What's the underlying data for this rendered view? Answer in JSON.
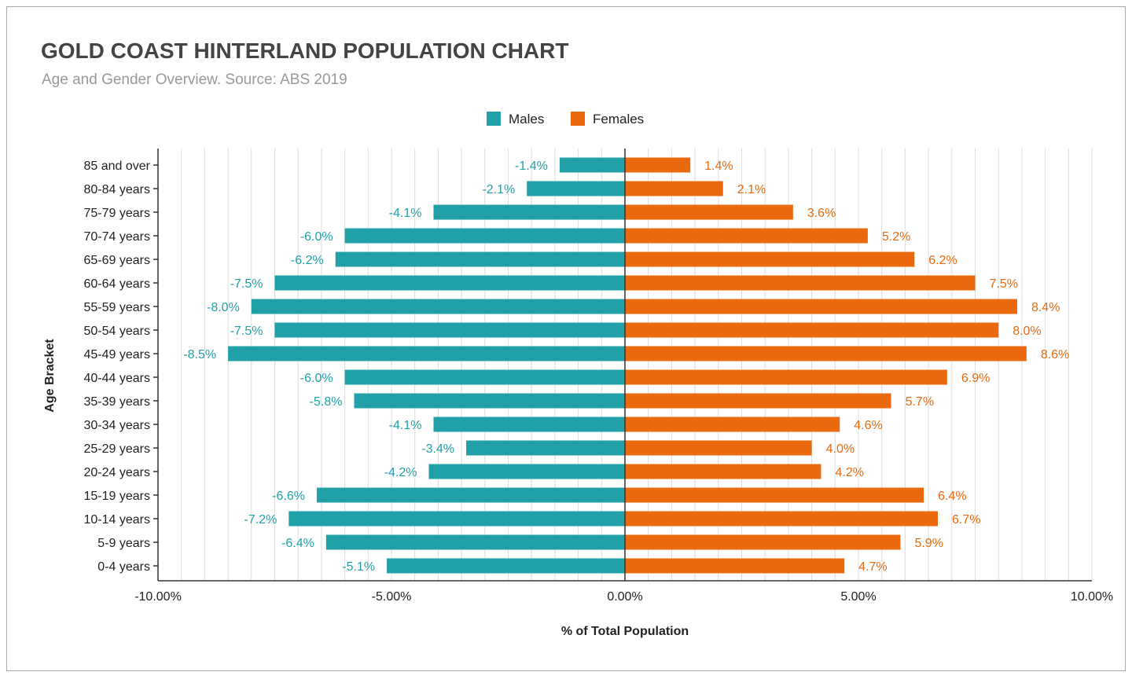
{
  "header": {
    "title": "GOLD COAST HINTERLAND POPULATION CHART",
    "subtitle": "Age and Gender Overview. Source: ABS 2019"
  },
  "colors": {
    "males": "#22a0a8",
    "females": "#e8690e",
    "grid": "#dddddd",
    "axis": "#333333",
    "text": "#222222"
  },
  "chart_data": {
    "type": "bar",
    "orientation": "horizontal",
    "subtype": "population-pyramid",
    "title": "GOLD COAST HINTERLAND POPULATION CHART",
    "subtitle": "Age and Gender Overview. Source: ABS 2019",
    "xlabel": "% of Total Population",
    "ylabel": "Age Bracket",
    "xlim": [
      -10,
      10
    ],
    "x_ticks": [
      "-10.00%",
      "-5.00%",
      "0.00%",
      "5.00%",
      "10.00%"
    ],
    "x_tick_values": [
      -10,
      -5,
      0,
      5,
      10
    ],
    "grid": true,
    "legend_position": "top-center",
    "categories": [
      "85 and over",
      "80-84 years",
      "75-79 years",
      "70-74 years",
      "65-69 years",
      "60-64 years",
      "55-59 years",
      "50-54 years",
      "45-49 years",
      "40-44 years",
      "35-39 years",
      "30-34 years",
      "25-29 years",
      "20-24 years",
      "15-19 years",
      "10-14 years",
      "5-9 years",
      "0-4 years"
    ],
    "series": [
      {
        "name": "Males",
        "color": "#22a0a8",
        "values": [
          -1.4,
          -2.1,
          -4.1,
          -6.0,
          -6.2,
          -7.5,
          -8.0,
          -7.5,
          -8.5,
          -6.0,
          -5.8,
          -4.1,
          -3.4,
          -4.2,
          -6.6,
          -7.2,
          -6.4,
          -5.1
        ],
        "labels": [
          "-1.4%",
          "-2.1%",
          "-4.1%",
          "-6.0%",
          "-6.2%",
          "-7.5%",
          "-8.0%",
          "-7.5%",
          "-8.5%",
          "-6.0%",
          "-5.8%",
          "-4.1%",
          "-3.4%",
          "-4.2%",
          "-6.6%",
          "-7.2%",
          "-6.4%",
          "-5.1%"
        ]
      },
      {
        "name": "Females",
        "color": "#e8690e",
        "values": [
          1.4,
          2.1,
          3.6,
          5.2,
          6.2,
          7.5,
          8.4,
          8.0,
          8.6,
          6.9,
          5.7,
          4.6,
          4.0,
          4.2,
          6.4,
          6.7,
          5.9,
          4.7
        ],
        "labels": [
          "1.4%",
          "2.1%",
          "3.6%",
          "5.2%",
          "6.2%",
          "7.5%",
          "8.4%",
          "8.0%",
          "8.6%",
          "6.9%",
          "5.7%",
          "4.6%",
          "4.0%",
          "4.2%",
          "6.4%",
          "6.7%",
          "5.9%",
          "4.7%"
        ]
      }
    ]
  }
}
